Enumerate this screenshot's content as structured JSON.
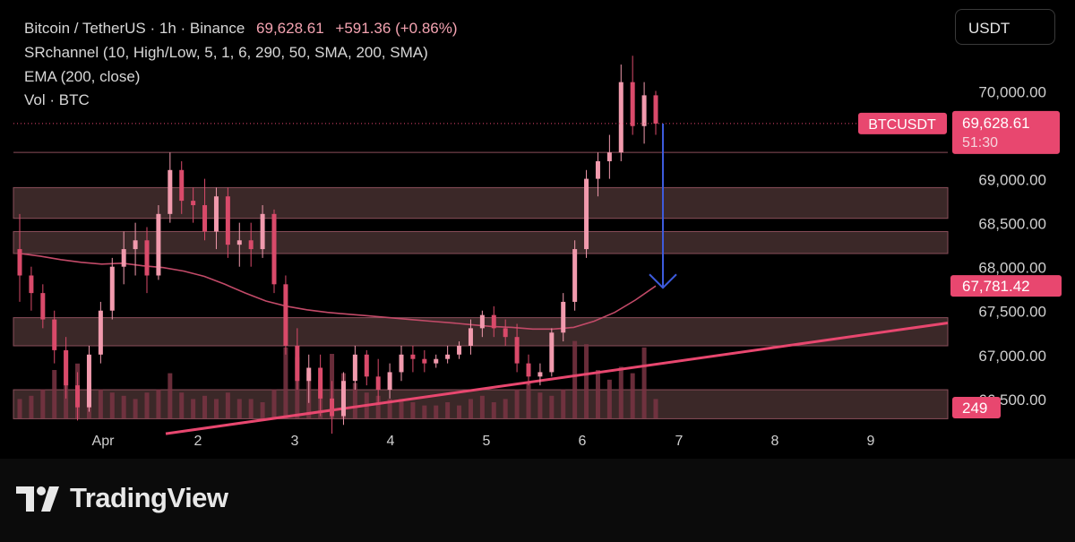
{
  "legend": {
    "line1_symbol": "Bitcoin / TetherUS · 1h · Binance",
    "line1_price": "69,628.61",
    "line1_change": "+591.36 (+0.86%)",
    "line2": "SRchannel (10, High/Low, 5, 1, 6, 290, 50, SMA, 200, SMA)",
    "line3": "EMA (200, close)",
    "line4": "Vol · BTC"
  },
  "currency_button": "USDT",
  "footer": {
    "brand": "TradingView"
  },
  "colors": {
    "accent": "#e8476f",
    "candle": "#f19aad",
    "ema": "#c24a68",
    "sr_zone": "#3b2828",
    "sr_border": "#8a4e5a",
    "arrow": "#3d5bdc"
  },
  "chart_data": {
    "type": "candlestick",
    "symbol": "BTCUSDT",
    "price_axis": {
      "ticks": [
        "70,000.00",
        "69,000.00",
        "68,500.00",
        "68,000.00",
        "67,500.00",
        "67,000.00",
        "66,500.00"
      ],
      "tick_values": [
        70000,
        69000,
        68500,
        68000,
        67500,
        67000,
        66500
      ],
      "range": [
        66050,
        70800
      ]
    },
    "time_axis": {
      "ticks": [
        "Apr",
        "2",
        "3",
        "4",
        "5",
        "6",
        "7",
        "8",
        "9"
      ]
    },
    "last_price_label": {
      "symbol": "BTCUSDT",
      "price": "69,628.61",
      "countdown": "51:30",
      "value": 69628.61
    },
    "ema_label": {
      "price": "67,781.42",
      "value": 67781.42
    },
    "volume_label": "249",
    "sr_zones": [
      [
        68550,
        68900
      ],
      [
        68150,
        68400
      ],
      [
        67100,
        67420
      ],
      [
        66270,
        66600
      ]
    ],
    "sr_lines": [
      69300
    ],
    "trendline": {
      "from": [
        "Apr 1 ~06:00",
        66100
      ],
      "to": [
        "Apr 9 ~22:00",
        67360
      ]
    },
    "ema_values": [
      [
        0,
        68150
      ],
      [
        1,
        68120
      ],
      [
        2,
        68080
      ],
      [
        3,
        68050
      ],
      [
        4,
        68030
      ],
      [
        5,
        68040
      ],
      [
        6,
        68010
      ],
      [
        7,
        67990
      ],
      [
        8,
        67950
      ],
      [
        9,
        67890
      ],
      [
        10,
        67800
      ],
      [
        11,
        67700
      ],
      [
        12,
        67610
      ],
      [
        13,
        67550
      ],
      [
        14,
        67510
      ],
      [
        15,
        67480
      ],
      [
        16,
        67460
      ],
      [
        17,
        67440
      ],
      [
        18,
        67420
      ],
      [
        19,
        67400
      ],
      [
        20,
        67380
      ],
      [
        21,
        67362
      ],
      [
        22,
        67340
      ],
      [
        23,
        67320
      ],
      [
        24,
        67310
      ],
      [
        25,
        67290
      ],
      [
        26,
        67290
      ],
      [
        27,
        67310
      ],
      [
        28,
        67380
      ],
      [
        29,
        67480
      ],
      [
        30,
        67620
      ],
      [
        31,
        67781
      ]
    ],
    "projection_arrow": {
      "from": 69628,
      "to": 67760
    },
    "candles": [
      [
        68200,
        68600,
        67600,
        67900
      ],
      [
        67900,
        68000,
        67500,
        67700
      ],
      [
        67700,
        67800,
        67300,
        67400
      ],
      [
        67400,
        67500,
        66900,
        67050
      ],
      [
        67050,
        67200,
        66500,
        66650
      ],
      [
        66650,
        66800,
        66250,
        66400
      ],
      [
        66400,
        67100,
        66350,
        67000
      ],
      [
        67000,
        67600,
        66900,
        67500
      ],
      [
        67500,
        68100,
        67400,
        68000
      ],
      [
        68000,
        68400,
        67800,
        68200
      ],
      [
        68200,
        68500,
        67900,
        68300
      ],
      [
        68300,
        68450,
        67700,
        67900
      ],
      [
        67900,
        68700,
        67850,
        68600
      ],
      [
        68600,
        69300,
        68500,
        69100
      ],
      [
        69100,
        69200,
        68600,
        68750
      ],
      [
        68750,
        68900,
        68500,
        68700
      ],
      [
        68700,
        69000,
        68300,
        68400
      ],
      [
        68400,
        68900,
        68200,
        68800
      ],
      [
        68800,
        68900,
        68100,
        68250
      ],
      [
        68250,
        68500,
        68000,
        68300
      ],
      [
        68300,
        68500,
        68000,
        68200
      ],
      [
        68200,
        68700,
        68100,
        68600
      ],
      [
        68600,
        68650,
        67700,
        67800
      ],
      [
        67800,
        67900,
        67000,
        67100
      ],
      [
        67100,
        67300,
        66600,
        66700
      ],
      [
        66700,
        67000,
        66450,
        66850
      ],
      [
        66850,
        67000,
        66300,
        66500
      ],
      [
        66500,
        66700,
        66100,
        66300
      ],
      [
        66300,
        66800,
        66200,
        66700
      ],
      [
        66700,
        67100,
        66600,
        67000
      ],
      [
        67000,
        67050,
        66650,
        66750
      ],
      [
        66750,
        66950,
        66450,
        66600
      ],
      [
        66600,
        66900,
        66500,
        66800
      ],
      [
        66800,
        67100,
        66700,
        67000
      ],
      [
        67000,
        67100,
        66800,
        66950
      ],
      [
        66950,
        67050,
        66800,
        66900
      ],
      [
        66900,
        67000,
        66850,
        66950
      ],
      [
        66950,
        67100,
        66900,
        67000
      ],
      [
        67000,
        67150,
        66950,
        67100
      ],
      [
        67100,
        67400,
        67000,
        67300
      ],
      [
        67300,
        67500,
        67200,
        67450
      ],
      [
        67450,
        67550,
        67200,
        67300
      ],
      [
        67300,
        67400,
        67100,
        67200
      ],
      [
        67200,
        67350,
        66800,
        66900
      ],
      [
        66900,
        67000,
        66650,
        66750
      ],
      [
        66750,
        66900,
        66650,
        66800
      ],
      [
        66800,
        67300,
        66750,
        67250
      ],
      [
        67250,
        67700,
        67150,
        67600
      ],
      [
        67600,
        68300,
        67500,
        68200
      ],
      [
        68200,
        69100,
        68100,
        69000
      ],
      [
        69000,
        69300,
        68800,
        69200
      ],
      [
        69200,
        69500,
        69000,
        69300
      ],
      [
        69300,
        70300,
        69200,
        70100
      ],
      [
        70100,
        70400,
        69500,
        69600
      ],
      [
        69600,
        70100,
        69400,
        69950
      ],
      [
        69950,
        70000,
        69500,
        69628
      ]
    ],
    "volumes": [
      60,
      70,
      90,
      150,
      210,
      170,
      110,
      90,
      80,
      70,
      60,
      80,
      90,
      140,
      80,
      60,
      70,
      60,
      80,
      60,
      60,
      50,
      90,
      220,
      190,
      140,
      120,
      200,
      140,
      110,
      80,
      70,
      60,
      60,
      50,
      40,
      40,
      50,
      40,
      60,
      70,
      50,
      60,
      90,
      110,
      80,
      70,
      90,
      240,
      230,
      150,
      120,
      160,
      140,
      220,
      60
    ]
  }
}
